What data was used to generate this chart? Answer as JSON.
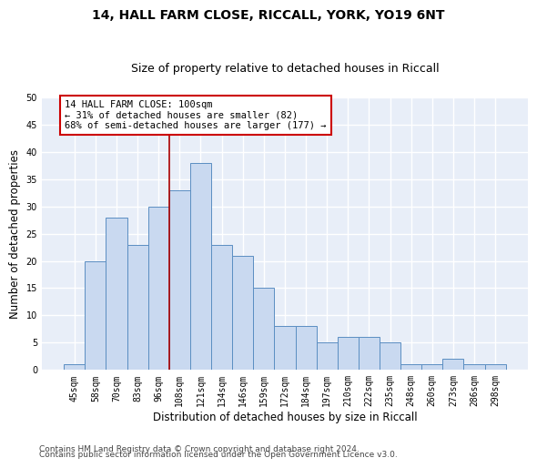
{
  "title1": "14, HALL FARM CLOSE, RICCALL, YORK, YO19 6NT",
  "title2": "Size of property relative to detached houses in Riccall",
  "xlabel": "Distribution of detached houses by size in Riccall",
  "ylabel": "Number of detached properties",
  "categories": [
    "45sqm",
    "58sqm",
    "70sqm",
    "83sqm",
    "96sqm",
    "108sqm",
    "121sqm",
    "134sqm",
    "146sqm",
    "159sqm",
    "172sqm",
    "184sqm",
    "197sqm",
    "210sqm",
    "222sqm",
    "235sqm",
    "248sqm",
    "260sqm",
    "273sqm",
    "286sqm",
    "298sqm"
  ],
  "values": [
    1,
    20,
    28,
    23,
    30,
    33,
    38,
    23,
    21,
    15,
    8,
    8,
    5,
    6,
    6,
    5,
    1,
    1,
    2,
    1,
    1
  ],
  "bar_color": "#c9d9f0",
  "bar_edge_color": "#5b8ec2",
  "background_color": "#e8eef8",
  "grid_color": "#ffffff",
  "vline_x": 4.5,
  "vline_color": "#aa0000",
  "annotation_box_text": "14 HALL FARM CLOSE: 100sqm\n← 31% of detached houses are smaller (82)\n68% of semi-detached houses are larger (177) →",
  "annotation_box_color": "#cc0000",
  "ylim": [
    0,
    50
  ],
  "yticks": [
    0,
    5,
    10,
    15,
    20,
    25,
    30,
    35,
    40,
    45,
    50
  ],
  "footer1": "Contains HM Land Registry data © Crown copyright and database right 2024.",
  "footer2": "Contains public sector information licensed under the Open Government Licence v3.0.",
  "title1_fontsize": 10,
  "title2_fontsize": 9,
  "xlabel_fontsize": 8.5,
  "ylabel_fontsize": 8.5,
  "tick_fontsize": 7,
  "annotation_fontsize": 7.5,
  "footer_fontsize": 6.5
}
